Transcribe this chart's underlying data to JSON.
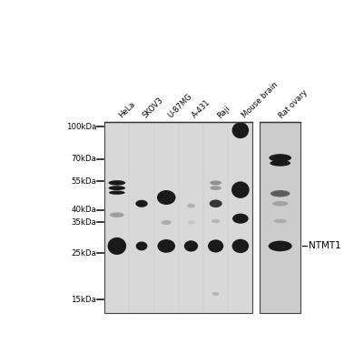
{
  "fig_bg": "#ffffff",
  "panel_bg": "#d8d8d8",
  "panel2_bg": "#cccccc",
  "lane_labels": [
    "HeLa",
    "SKOV3",
    "U-87MG",
    "A-431",
    "Raji",
    "Mouse brain",
    "Rat ovary"
  ],
  "mw_labels": [
    "100kDa",
    "70kDa",
    "55kDa",
    "40kDa",
    "35kDa",
    "25kDa",
    "15kDa"
  ],
  "mw_positions": [
    100,
    70,
    55,
    40,
    35,
    25,
    15
  ],
  "annotation": "NTMT1",
  "dark": "#1a1a1a",
  "mid": "#3a3a3a",
  "light": "#707070",
  "vlight": "#aaaaaa",
  "panel1_xleft": 0.22,
  "panel1_xright": 0.76,
  "panel2_xleft": 0.785,
  "panel2_xright": 0.935,
  "blot_ybottom": 0.04,
  "blot_ytop": 0.72,
  "mw_xright": 0.215
}
